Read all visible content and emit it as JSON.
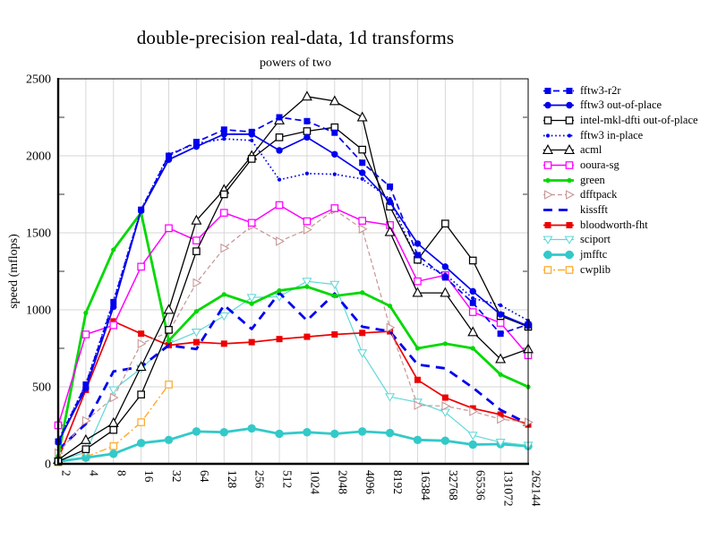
{
  "chart_data": {
    "type": "line",
    "title": "double-precision real-data, 1d transforms",
    "subtitle": "powers of two",
    "ylabel": "speed (mflops)",
    "xlabel": "",
    "x_labels": [
      "2",
      "4",
      "8",
      "16",
      "32",
      "64",
      "128",
      "256",
      "512",
      "1024",
      "2048",
      "4096",
      "8192",
      "16384",
      "32768",
      "65536",
      "131072",
      "262144"
    ],
    "ylim": [
      0,
      2500
    ],
    "y_major_ticks": [
      0,
      500,
      1000,
      1500,
      2000,
      2500
    ],
    "y_minor_ticks": [
      250,
      750,
      1250,
      1750,
      2250
    ],
    "grid": true,
    "legend_position": "right",
    "series": [
      {
        "name": "fftw3-r2r",
        "color": "#0000ee",
        "line": "dashed",
        "marker": "square-filled",
        "values": [
          145,
          515,
          1050,
          1650,
          2000,
          2090,
          2170,
          2155,
          2250,
          2225,
          2150,
          1955,
          1800,
          1355,
          1210,
          1045,
          845,
          905
        ]
      },
      {
        "name": "fftw3 out-of-place",
        "color": "#0000ee",
        "line": "solid",
        "marker": "circle-filled",
        "values": [
          140,
          490,
          1020,
          1645,
          1975,
          2060,
          2140,
          2140,
          2035,
          2120,
          2010,
          1890,
          1700,
          1430,
          1280,
          1120,
          970,
          895
        ]
      },
      {
        "name": "intel-mkl-dfti out-of-place",
        "color": "#000000",
        "line": "solid",
        "marker": "square-open",
        "values": [
          15,
          95,
          220,
          450,
          870,
          1380,
          1750,
          1980,
          2120,
          2160,
          2185,
          2040,
          1670,
          1325,
          1560,
          1320,
          960,
          890
        ]
      },
      {
        "name": "fftw3 in-place",
        "color": "#0000ee",
        "line": "dotted",
        "marker": "dot",
        "values": [
          150,
          520,
          1060,
          1650,
          2010,
          2080,
          2110,
          2100,
          1845,
          1885,
          1880,
          1850,
          1720,
          1310,
          1230,
          1075,
          1030,
          930
        ]
      },
      {
        "name": "acml",
        "color": "#000000",
        "line": "solid",
        "marker": "triangle-up-open",
        "values": [
          25,
          155,
          265,
          630,
          1000,
          1580,
          1780,
          2000,
          2230,
          2385,
          2355,
          2250,
          1505,
          1110,
          1110,
          855,
          680,
          745
        ]
      },
      {
        "name": "ooura-sg",
        "color": "#ff00ff",
        "line": "solid",
        "marker": "square-open",
        "values": [
          250,
          840,
          900,
          1280,
          1530,
          1450,
          1630,
          1565,
          1680,
          1575,
          1660,
          1578,
          1550,
          1185,
          1225,
          985,
          915,
          705
        ]
      },
      {
        "name": "green",
        "color": "#00d800",
        "line": "solid",
        "marker": "circle-small-filled",
        "values": [
          50,
          980,
          1390,
          1630,
          800,
          990,
          1100,
          1040,
          1125,
          1150,
          1090,
          1112,
          1025,
          750,
          780,
          750,
          580,
          500
        ]
      },
      {
        "name": "dfftpack",
        "color": "#c69494",
        "line": "fine-dashed",
        "marker": "triangle-right-open",
        "values": [
          70,
          280,
          430,
          780,
          855,
          1175,
          1400,
          1545,
          1445,
          1520,
          1650,
          1525,
          885,
          380,
          375,
          340,
          290,
          270
        ]
      },
      {
        "name": "kissfft",
        "color": "#0000ee",
        "line": "bold-dashed",
        "marker": "none",
        "values": [
          90,
          260,
          600,
          630,
          770,
          745,
          1030,
          875,
          1110,
          930,
          1105,
          890,
          860,
          645,
          620,
          495,
          350,
          260
        ]
      },
      {
        "name": "bloodworth-fht",
        "color": "#ee0000",
        "line": "solid",
        "marker": "square-filled",
        "values": [
          30,
          480,
          925,
          845,
          770,
          790,
          780,
          790,
          810,
          825,
          840,
          850,
          860,
          545,
          430,
          360,
          320,
          255
        ]
      },
      {
        "name": "sciport",
        "color": "#5fd8d8",
        "line": "solid",
        "marker": "triangle-down-open",
        "values": [
          20,
          75,
          480,
          620,
          780,
          855,
          960,
          1080,
          1085,
          1185,
          1165,
          720,
          435,
          400,
          335,
          185,
          140,
          120
        ]
      },
      {
        "name": "jmfftc",
        "color": "#33c9c9",
        "line": "solid",
        "marker": "circle-large-filled",
        "values": [
          15,
          40,
          65,
          135,
          155,
          210,
          205,
          230,
          195,
          205,
          195,
          210,
          200,
          155,
          150,
          125,
          128,
          115
        ]
      },
      {
        "name": "cwplib",
        "color": "#ffaa2b",
        "line": "dashdot",
        "marker": "square-open",
        "values": [
          10,
          45,
          115,
          270,
          515,
          null,
          null,
          null,
          null,
          null,
          null,
          null,
          null,
          null,
          null,
          null,
          null,
          null
        ]
      }
    ]
  }
}
